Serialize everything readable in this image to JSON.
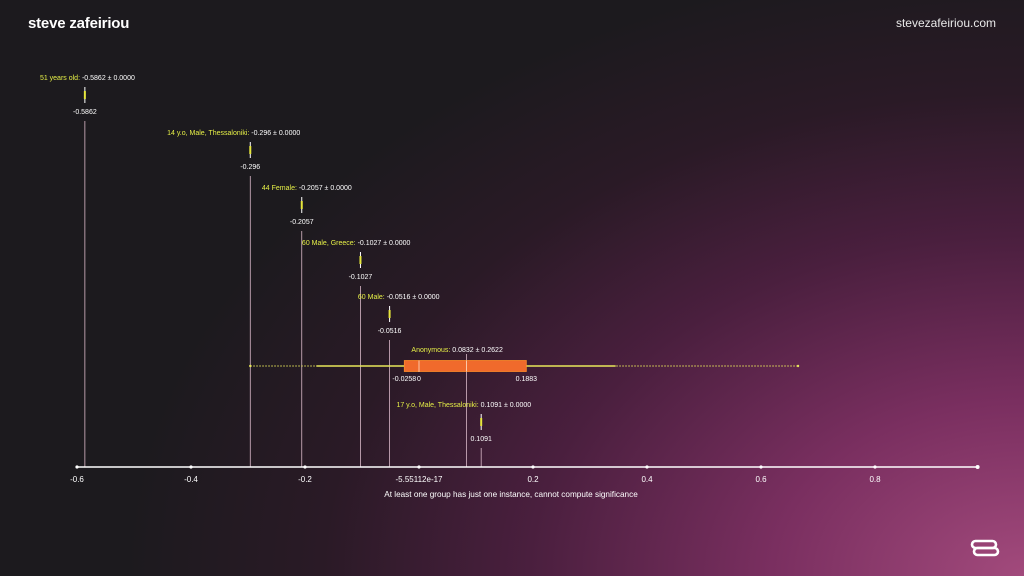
{
  "header": {
    "brand": "steve zafeiriou",
    "site": "stevezafeiriou.com"
  },
  "icons": {
    "logo": "infinity-logo-icon"
  },
  "chart_data": {
    "type": "forest",
    "xlim": [
      -0.6,
      0.98
    ],
    "ticks": [
      -0.6,
      -0.4,
      -0.2,
      -5.55112e-17,
      0.2,
      0.4,
      0.6,
      0.8
    ],
    "tick_labels": [
      "-0.6",
      "-0.4",
      "-0.2",
      "-5.55112e-17",
      "0.2",
      "0.4",
      "0.6",
      "0.8"
    ],
    "xlabel": "At least one group has just one instance, cannot compute significance",
    "groups": [
      {
        "label": "51 years old:",
        "stat": "-0.5862 ± 0.0000",
        "value": -0.5862,
        "value_label": "-0.5862"
      },
      {
        "label": "14 y.o, Male, Thessaloniki:",
        "stat": "-0.296 ± 0.0000",
        "value": -0.296,
        "value_label": "-0.296"
      },
      {
        "label": "44 Female:",
        "stat": "-0.2057 ± 0.0000",
        "value": -0.2057,
        "value_label": "-0.2057"
      },
      {
        "label": "60 Male, Greece:",
        "stat": "-0.1027 ± 0.0000",
        "value": -0.1027,
        "value_label": "-0.1027"
      },
      {
        "label": "60 Male:",
        "stat": "-0.0516 ± 0.0000",
        "value": -0.0516,
        "value_label": "-0.0516"
      },
      {
        "label": "Anonymous:",
        "stat": "0.0832 ± 0.2622",
        "value": 0.0832,
        "box": {
          "q1": -0.0258,
          "median": 0,
          "q3": 0.1883,
          "whisker_low": -0.18,
          "whisker_high": 0.345,
          "range_low": -0.296,
          "range_high": 0.665
        },
        "box_labels": [
          "-0.0258",
          "0",
          "0.1883"
        ]
      },
      {
        "label": "17 y.o, Male, Thessaloniki:",
        "stat": "0.1091 ± 0.0000",
        "value": 0.1091,
        "value_label": "0.1091"
      }
    ],
    "colors": {
      "label": "#e6f047",
      "marker": "#e6e63c",
      "box": "#f06a2c",
      "box_edge": "#ff8a2a",
      "whisker": "#e8e85a",
      "axis": "#ffffff",
      "vline": "#d9b8c8"
    }
  }
}
